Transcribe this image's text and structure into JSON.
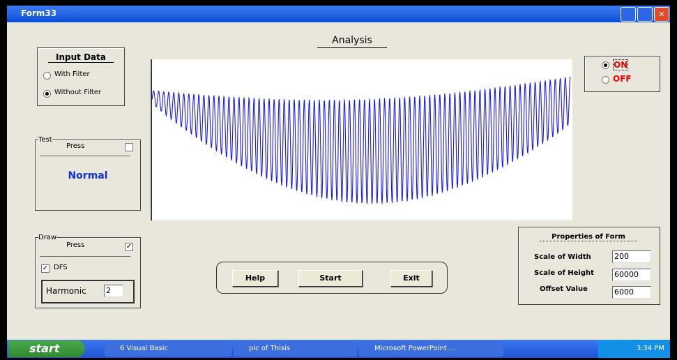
{
  "window": {
    "title": "Form33"
  },
  "header": {
    "title": "Analysis"
  },
  "input_data": {
    "title": "Input Data",
    "options": [
      "With Filter",
      "Without Filter"
    ]
  },
  "test": {
    "label": "Test",
    "press": "Press",
    "status": "Normal"
  },
  "draw": {
    "label": "Draw",
    "press": "Press",
    "dfs": "DFS",
    "harmonic_label": "Harmonic",
    "harmonic_value": "2"
  },
  "power": {
    "options": [
      "ON",
      "OFF"
    ]
  },
  "buttons": [
    "Help",
    "Start",
    "Exit"
  ],
  "properties": {
    "title": "Properties of Form",
    "rows": [
      {
        "label": "Scale of Width",
        "value": "200"
      },
      {
        "label": "Scale of Height",
        "value": "60000"
      },
      {
        "label": "Offset Value",
        "value": "6000"
      }
    ]
  },
  "taskbar": {
    "start": "start",
    "items": [
      "6 Visual Basic",
      "pic of Thisis",
      "Microsoft PowerPoint ..."
    ],
    "clock": "3:34 PM"
  }
}
